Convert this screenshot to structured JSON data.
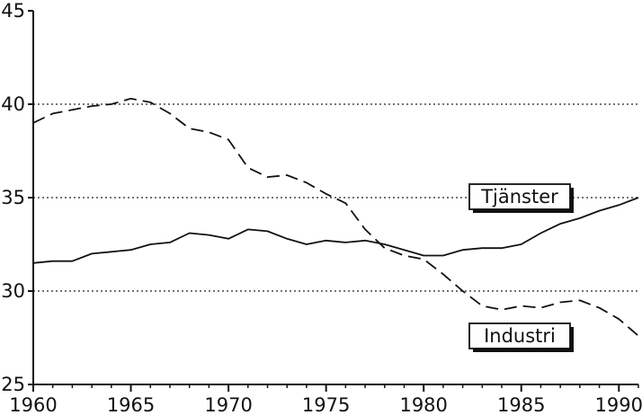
{
  "chart_data": {
    "type": "line",
    "xlim": [
      1960,
      1991
    ],
    "ylim": [
      25,
      45
    ],
    "x_ticks": [
      "1960",
      "1965",
      "1970",
      "1975",
      "1980",
      "1985",
      "1990"
    ],
    "y_ticks": [
      "25",
      "30",
      "35",
      "40",
      "45"
    ],
    "grid": "horizontal dotted lines at 30, 35, 40",
    "series": [
      {
        "name": "Tjänster",
        "line_style": "solid",
        "x": [
          1960,
          1961,
          1962,
          1963,
          1964,
          1965,
          1966,
          1967,
          1968,
          1969,
          1970,
          1971,
          1972,
          1973,
          1974,
          1975,
          1976,
          1977,
          1978,
          1979,
          1980,
          1981,
          1982,
          1983,
          1984,
          1985,
          1986,
          1987,
          1988,
          1989,
          1990,
          1991
        ],
        "values": [
          31.5,
          31.6,
          31.6,
          32.0,
          32.1,
          32.2,
          32.5,
          32.6,
          33.1,
          33.0,
          32.8,
          33.3,
          33.2,
          32.8,
          32.5,
          32.7,
          32.6,
          32.7,
          32.5,
          32.2,
          31.9,
          31.9,
          32.2,
          32.3,
          32.3,
          32.5,
          33.1,
          33.6,
          33.9,
          34.3,
          34.6,
          35.0
        ]
      },
      {
        "name": "Industri",
        "line_style": "dashed",
        "x": [
          1960,
          1961,
          1962,
          1963,
          1964,
          1965,
          1966,
          1967,
          1968,
          1969,
          1970,
          1971,
          1972,
          1973,
          1974,
          1975,
          1976,
          1977,
          1978,
          1979,
          1980,
          1981,
          1982,
          1983,
          1984,
          1985,
          1986,
          1987,
          1988,
          1989,
          1990,
          1991
        ],
        "values": [
          39.0,
          39.5,
          39.7,
          39.9,
          40.0,
          40.3,
          40.1,
          39.5,
          38.7,
          38.5,
          38.1,
          36.6,
          36.1,
          36.2,
          35.8,
          35.2,
          34.7,
          33.3,
          32.3,
          31.9,
          31.7,
          30.9,
          30.0,
          29.2,
          29.0,
          29.2,
          29.1,
          29.4,
          29.5,
          29.1,
          28.5,
          27.6
        ]
      }
    ]
  }
}
